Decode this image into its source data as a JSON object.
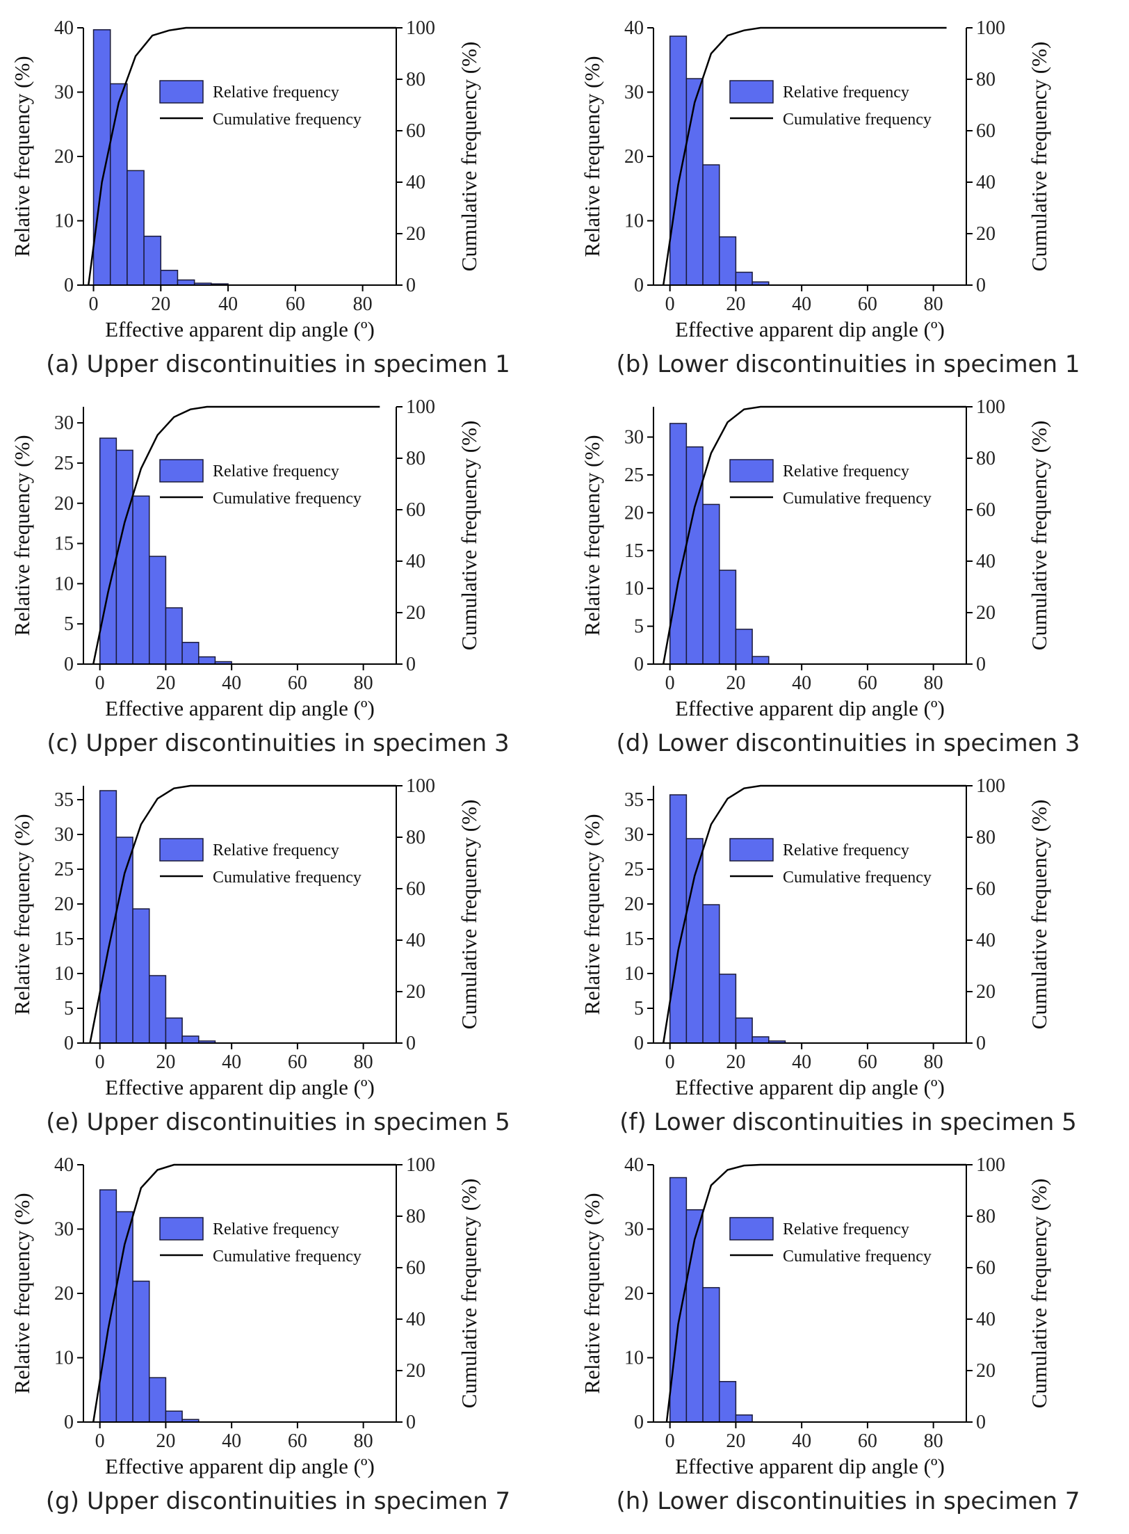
{
  "colors": {
    "bar_fill": "#5b6cf0",
    "bar_stroke": "#1a1a3a",
    "line": "#000000",
    "axis": "#000000"
  },
  "chart_data": [
    {
      "type": "bar",
      "caption": "(a) Upper discontinuities in specimen 1",
      "xlabel": "Effective apparent dip angle (º)",
      "ylabel": "Relative frequency (%)",
      "y2label": "Cumulative frequency (%)",
      "xlim": [
        -3,
        90
      ],
      "ylim": [
        0,
        40
      ],
      "y2lim": [
        0,
        100
      ],
      "xticks": [
        0,
        20,
        40,
        60,
        80
      ],
      "yticks": [
        0,
        10,
        20,
        30,
        40
      ],
      "y2ticks": [
        0,
        20,
        40,
        60,
        80,
        100
      ],
      "bin_width": 5,
      "bin_centers": [
        2.5,
        7.5,
        12.5,
        17.5,
        22.5,
        27.5,
        32.5,
        37.5
      ],
      "values": [
        39.7,
        31.3,
        17.8,
        7.6,
        2.3,
        0.8,
        0.3,
        0.2
      ],
      "legend": [
        "Relative frequency",
        "Cumulative frequency"
      ],
      "legend_position": "center",
      "cumulative": {
        "x": [
          -1.5,
          2.5,
          7.5,
          12.5,
          17.5,
          22.5,
          27.5,
          32.5,
          37.5,
          90
        ],
        "y": [
          0,
          40,
          71,
          89,
          97,
          99,
          100,
          100,
          100,
          100
        ]
      }
    },
    {
      "type": "bar",
      "caption": "(b) Lower discontinuities in specimen 1",
      "xlabel": "Effective apparent dip angle (º)",
      "ylabel": "Relative frequency (%)",
      "y2label": "Cumulative frequency (%)",
      "xlim": [
        -5,
        90
      ],
      "ylim": [
        0,
        40
      ],
      "y2lim": [
        0,
        100
      ],
      "xticks": [
        0,
        20,
        40,
        60,
        80
      ],
      "yticks": [
        0,
        10,
        20,
        30,
        40
      ],
      "y2ticks": [
        0,
        20,
        40,
        60,
        80,
        100
      ],
      "bin_width": 5,
      "bin_centers": [
        2.5,
        7.5,
        12.5,
        17.5,
        22.5,
        27.5
      ],
      "values": [
        38.7,
        32.1,
        18.7,
        7.5,
        2.0,
        0.5
      ],
      "legend": [
        "Relative frequency",
        "Cumulative frequency"
      ],
      "legend_position": "center",
      "cumulative": {
        "x": [
          -2,
          2.5,
          7.5,
          12.5,
          17.5,
          22.5,
          27.5,
          84
        ],
        "y": [
          0,
          39,
          71,
          90,
          97,
          99,
          100,
          100
        ]
      }
    },
    {
      "type": "bar",
      "caption": "(c) Upper discontinuities in specimen 3",
      "xlabel": "Effective apparent dip angle (º)",
      "ylabel": "Relative frequency (%)",
      "y2label": "Cumulative frequency (%)",
      "xlim": [
        -5,
        90
      ],
      "ylim": [
        0,
        32
      ],
      "y2lim": [
        0,
        100
      ],
      "xticks": [
        0,
        20,
        40,
        60,
        80
      ],
      "yticks": [
        0,
        5,
        10,
        15,
        20,
        25,
        30
      ],
      "y2ticks": [
        0,
        20,
        40,
        60,
        80,
        100
      ],
      "bin_width": 5,
      "bin_centers": [
        2.5,
        7.5,
        12.5,
        17.5,
        22.5,
        27.5,
        32.5,
        37.5
      ],
      "values": [
        28.1,
        26.6,
        20.9,
        13.4,
        7.0,
        2.7,
        0.9,
        0.3
      ],
      "legend": [
        "Relative frequency",
        "Cumulative frequency"
      ],
      "legend_position": "center",
      "cumulative": {
        "x": [
          -2,
          2.5,
          7.5,
          12.5,
          17.5,
          22.5,
          27.5,
          32.5,
          37.5,
          85
        ],
        "y": [
          0,
          28,
          55,
          76,
          89,
          96,
          99,
          100,
          100,
          100
        ]
      }
    },
    {
      "type": "bar",
      "caption": "(d) Lower discontinuities in specimen 3",
      "xlabel": "Effective apparent dip angle (º)",
      "ylabel": "Relative frequency (%)",
      "y2label": "Cumulative frequency (%)",
      "xlim": [
        -5,
        90
      ],
      "ylim": [
        0,
        34
      ],
      "y2lim": [
        0,
        100
      ],
      "xticks": [
        0,
        20,
        40,
        60,
        80
      ],
      "yticks": [
        0,
        5,
        10,
        15,
        20,
        25,
        30
      ],
      "y2ticks": [
        0,
        20,
        40,
        60,
        80,
        100
      ],
      "bin_width": 5,
      "bin_centers": [
        2.5,
        7.5,
        12.5,
        17.5,
        22.5,
        27.5
      ],
      "values": [
        31.8,
        28.7,
        21.1,
        12.4,
        4.6,
        1.0
      ],
      "legend": [
        "Relative frequency",
        "Cumulative frequency"
      ],
      "legend_position": "center",
      "cumulative": {
        "x": [
          -2,
          2.5,
          7.5,
          12.5,
          17.5,
          22.5,
          27.5,
          90
        ],
        "y": [
          0,
          32,
          61,
          82,
          94,
          99,
          100,
          100
        ]
      }
    },
    {
      "type": "bar",
      "caption": "(e) Upper discontinuities in specimen 5",
      "xlabel": "Effective apparent dip angle (º)",
      "ylabel": "Relative frequency (%)",
      "y2label": "Cumulative frequency (%)",
      "xlim": [
        -5,
        90
      ],
      "ylim": [
        0,
        37
      ],
      "y2lim": [
        0,
        100
      ],
      "xticks": [
        0,
        20,
        40,
        60,
        80
      ],
      "yticks": [
        0,
        5,
        10,
        15,
        20,
        25,
        30,
        35
      ],
      "y2ticks": [
        0,
        20,
        40,
        60,
        80,
        100
      ],
      "bin_width": 5,
      "bin_centers": [
        2.5,
        7.5,
        12.5,
        17.5,
        22.5,
        27.5,
        32.5
      ],
      "values": [
        36.3,
        29.6,
        19.3,
        9.7,
        3.6,
        1.0,
        0.3
      ],
      "legend": [
        "Relative frequency",
        "Cumulative frequency"
      ],
      "legend_position": "center",
      "cumulative": {
        "x": [
          -3,
          2.5,
          7.5,
          12.5,
          17.5,
          22.5,
          27.5,
          32.5,
          90
        ],
        "y": [
          0,
          36,
          66,
          85,
          95,
          99,
          100,
          100,
          100
        ]
      }
    },
    {
      "type": "bar",
      "caption": "(f) Lower discontinuities in specimen 5",
      "xlabel": "Effective apparent dip angle (º)",
      "ylabel": "Relative frequency (%)",
      "y2label": "Cumulative frequency (%)",
      "xlim": [
        -5,
        90
      ],
      "ylim": [
        0,
        37
      ],
      "y2lim": [
        0,
        100
      ],
      "xticks": [
        0,
        20,
        40,
        60,
        80
      ],
      "yticks": [
        0,
        5,
        10,
        15,
        20,
        25,
        30,
        35
      ],
      "y2ticks": [
        0,
        20,
        40,
        60,
        80,
        100
      ],
      "bin_width": 5,
      "bin_centers": [
        2.5,
        7.5,
        12.5,
        17.5,
        22.5,
        27.5,
        32.5
      ],
      "values": [
        35.7,
        29.4,
        19.9,
        9.9,
        3.6,
        0.9,
        0.3
      ],
      "legend": [
        "Relative frequency",
        "Cumulative frequency"
      ],
      "legend_position": "center",
      "cumulative": {
        "x": [
          -2,
          2.5,
          7.5,
          12.5,
          17.5,
          22.5,
          27.5,
          32.5,
          90
        ],
        "y": [
          0,
          36,
          65,
          85,
          95,
          99,
          100,
          100,
          100
        ]
      }
    },
    {
      "type": "bar",
      "caption": "(g) Upper discontinuities in specimen 7",
      "xlabel": "Effective apparent dip angle (º)",
      "ylabel": "Relative frequency (%)",
      "y2label": "Cumulative frequency (%)",
      "xlim": [
        -5,
        90
      ],
      "ylim": [
        0,
        40
      ],
      "y2lim": [
        0,
        100
      ],
      "xticks": [
        0,
        20,
        40,
        60,
        80
      ],
      "yticks": [
        0,
        10,
        20,
        30,
        40
      ],
      "y2ticks": [
        0,
        20,
        40,
        60,
        80,
        100
      ],
      "bin_width": 5,
      "bin_centers": [
        2.5,
        7.5,
        12.5,
        17.5,
        22.5,
        27.5
      ],
      "values": [
        36.1,
        32.7,
        21.9,
        6.9,
        1.7,
        0.4
      ],
      "legend": [
        "Relative frequency",
        "Cumulative frequency"
      ],
      "legend_position": "center",
      "cumulative": {
        "x": [
          -2,
          2.5,
          7.5,
          12.5,
          17.5,
          22.5,
          27.5,
          90
        ],
        "y": [
          0,
          36,
          69,
          91,
          98,
          100,
          100,
          100
        ]
      }
    },
    {
      "type": "bar",
      "caption": "(h) Lower discontinuities in specimen 7",
      "xlabel": "Effective apparent dip angle (º)",
      "ylabel": "Relative frequency (%)",
      "y2label": "Cumulative frequency (%)",
      "xlim": [
        -5,
        90
      ],
      "ylim": [
        0,
        40
      ],
      "y2lim": [
        0,
        100
      ],
      "xticks": [
        0,
        20,
        40,
        60,
        80
      ],
      "yticks": [
        0,
        10,
        20,
        30,
        40
      ],
      "y2ticks": [
        0,
        20,
        40,
        60,
        80,
        100
      ],
      "bin_width": 5,
      "bin_centers": [
        2.5,
        7.5,
        12.5,
        17.5,
        22.5
      ],
      "values": [
        38.0,
        33.0,
        20.9,
        6.3,
        1.1
      ],
      "legend": [
        "Relative frequency",
        "Cumulative frequency"
      ],
      "legend_position": "center",
      "cumulative": {
        "x": [
          -1,
          2.5,
          7.5,
          12.5,
          17.5,
          22.5,
          27.5,
          90
        ],
        "y": [
          0,
          38,
          71,
          92,
          98,
          99.7,
          100,
          100
        ]
      }
    }
  ]
}
